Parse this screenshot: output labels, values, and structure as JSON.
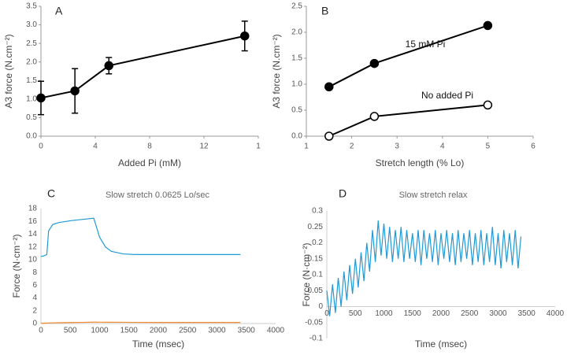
{
  "chart_data": [
    {
      "type": "line",
      "panel_label": "A",
      "xlabel": "Added Pi (mM)",
      "ylabel": "A3 force (N.cm⁻²)",
      "x": [
        0,
        2.5,
        5,
        15
      ],
      "series": [
        {
          "color": "#000000",
          "marker": "filled",
          "values": [
            1.03,
            1.22,
            1.9,
            2.7
          ],
          "errors": [
            0.45,
            0.6,
            0.22,
            0.4
          ]
        }
      ],
      "xlim": [
        0,
        16
      ],
      "xticks": [
        0,
        4,
        8,
        12,
        {
          "value": 16,
          "label": "1"
        }
      ],
      "ylim": [
        0,
        3.5
      ],
      "yticks": [
        {
          "value": 0,
          "label": "0.0"
        },
        0.5,
        {
          "value": 1,
          "label": "1.0"
        },
        1.5,
        {
          "value": 2,
          "label": "2.0"
        },
        2.5,
        {
          "value": 3,
          "label": "3.0"
        },
        3.5
      ],
      "grid": false
    },
    {
      "type": "line",
      "panel_label": "B",
      "xlabel": "Stretch length (% Lo)",
      "ylabel": "A3 force (N.cm⁻²)",
      "x": [
        1.5,
        2.5,
        5
      ],
      "series": [
        {
          "name": "15 mM Pi",
          "color": "#000000",
          "marker": "filled",
          "values": [
            0.95,
            1.4,
            2.13
          ]
        },
        {
          "name": "No added Pi",
          "color": "#000000",
          "marker": "open",
          "values": [
            0,
            0.38,
            0.6
          ]
        }
      ],
      "xlim": [
        1,
        6
      ],
      "xticks": [
        1,
        2,
        3,
        4,
        5,
        6
      ],
      "ylim": [
        0,
        2.5
      ],
      "yticks": [
        {
          "value": 0,
          "label": "0.0"
        },
        0.5,
        {
          "value": 1,
          "label": "1.0"
        },
        1.5,
        {
          "value": 2,
          "label": "2.0"
        },
        2.5
      ],
      "grid": false
    },
    {
      "type": "line",
      "panel_label": "C",
      "title": "Slow stretch 0.0625 Lo/sec",
      "xlabel": "Time (msec)",
      "ylabel": "Force (N·cm⁻²)",
      "x": [
        0,
        50,
        100,
        130,
        200,
        300,
        500,
        700,
        900,
        950,
        1000,
        1100,
        1200,
        1400,
        1600,
        2000,
        3400
      ],
      "series": [
        {
          "color": "#1f9ad6",
          "values": [
            10.5,
            10.6,
            10.8,
            14.5,
            15.5,
            15.8,
            16.1,
            16.3,
            16.5,
            15,
            13.5,
            12,
            11.3,
            10.9,
            10.8,
            10.8,
            10.8
          ]
        },
        {
          "color": "#f08a30",
          "values": [
            0.05,
            0.05,
            0.06,
            0.08,
            0.1,
            0.12,
            0.15,
            0.18,
            0.22,
            0.22,
            0.21,
            0.2,
            0.2,
            0.19,
            0.18,
            0.17,
            0.17
          ]
        }
      ],
      "xlim": [
        0,
        4000
      ],
      "xticks": [
        0,
        500,
        1000,
        1500,
        2000,
        2500,
        3000,
        3500,
        4000
      ],
      "ylim": [
        0,
        18
      ],
      "yticks": [
        0,
        2,
        4,
        6,
        8,
        10,
        12,
        14,
        16,
        18
      ],
      "grid": false
    },
    {
      "type": "line",
      "panel_label": "D",
      "title": "Slow stretch relax",
      "xlabel": "Time (msec)",
      "ylabel": "Force (N·cm⁻²)",
      "x": [
        0,
        50,
        100,
        150,
        200,
        250,
        300,
        350,
        400,
        450,
        500,
        550,
        600,
        650,
        700,
        750,
        800,
        850,
        900,
        950,
        1000,
        1050,
        1100,
        1150,
        1200,
        1250,
        1300,
        1350,
        1400,
        1450,
        1500,
        1550,
        1600,
        1650,
        1700,
        1750,
        1800,
        1850,
        1900,
        1950,
        2000,
        2050,
        2100,
        2150,
        2200,
        2250,
        2300,
        2350,
        2400,
        2450,
        2500,
        2550,
        2600,
        2650,
        2700,
        2750,
        2800,
        2850,
        2900,
        2950,
        3000,
        3050,
        3100,
        3150,
        3200,
        3250,
        3300,
        3350,
        3400
      ],
      "series": [
        {
          "color": "#1f9ad6",
          "values": [
            0.05,
            -0.03,
            0.07,
            -0.02,
            0.09,
            0.0,
            0.11,
            0.02,
            0.13,
            0.04,
            0.15,
            0.06,
            0.17,
            0.08,
            0.2,
            0.11,
            0.24,
            0.14,
            0.27,
            0.16,
            0.26,
            0.15,
            0.25,
            0.14,
            0.24,
            0.15,
            0.25,
            0.14,
            0.24,
            0.15,
            0.23,
            0.14,
            0.24,
            0.13,
            0.24,
            0.15,
            0.23,
            0.14,
            0.24,
            0.13,
            0.23,
            0.15,
            0.24,
            0.14,
            0.23,
            0.13,
            0.24,
            0.14,
            0.23,
            0.15,
            0.24,
            0.13,
            0.23,
            0.14,
            0.24,
            0.13,
            0.23,
            0.14,
            0.25,
            0.13,
            0.23,
            0.12,
            0.24,
            0.14,
            0.23,
            0.13,
            0.24,
            0.12,
            0.22
          ]
        }
      ],
      "xlim": [
        0,
        4000
      ],
      "xticks": [
        0,
        500,
        1000,
        1500,
        2000,
        2500,
        3000,
        3500,
        4000
      ],
      "ylim": [
        -0.1,
        0.3
      ],
      "yticks": [
        -0.1,
        -0.05,
        0,
        0.05,
        0.1,
        0.15,
        0.2,
        0.25,
        0.3
      ],
      "grid": false
    }
  ]
}
